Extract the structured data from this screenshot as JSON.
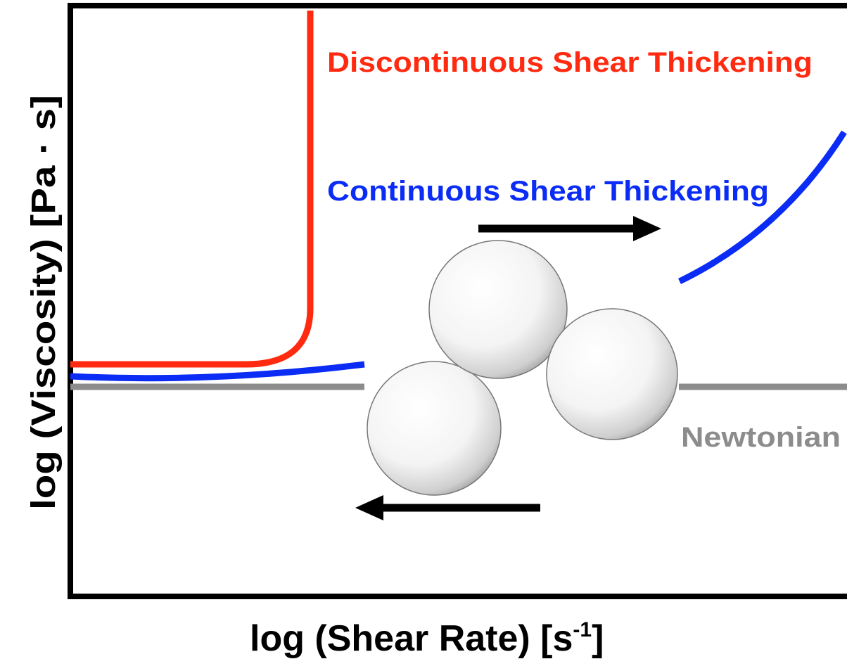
{
  "y_axis_label": "log (Viscosity) [Pa · s]",
  "x_axis_label": {
    "main": "log (Shear Rate) [s",
    "superscript": "-1",
    "end": "]"
  },
  "curves": [
    {
      "label": "Discontinuous Shear Thickening"
    },
    {
      "label": "Continuous Shear Thickening"
    },
    {
      "label": "Newtonian"
    }
  ]
}
